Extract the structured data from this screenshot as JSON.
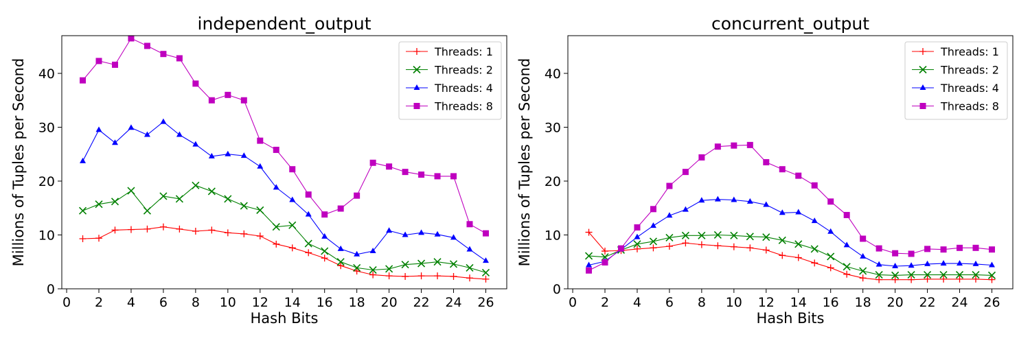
{
  "chart_data": [
    {
      "type": "line",
      "title": "independent_output",
      "xlabel": "Hash Bits",
      "ylabel": "Millions of Tuples per Second",
      "xlim": [
        -0.3,
        27.3
      ],
      "ylim": [
        0,
        47
      ],
      "xticks": [
        0,
        2,
        4,
        6,
        8,
        10,
        12,
        14,
        16,
        18,
        20,
        22,
        24,
        26
      ],
      "yticks": [
        0,
        10,
        20,
        30,
        40
      ],
      "legend_position": "top-right",
      "x": [
        1,
        2,
        3,
        4,
        5,
        6,
        7,
        8,
        9,
        10,
        11,
        12,
        13,
        14,
        15,
        16,
        17,
        18,
        19,
        20,
        21,
        22,
        23,
        24,
        25,
        26
      ],
      "series": [
        {
          "name": "Threads: 1",
          "color": "#ff0000",
          "marker": "plus",
          "values": [
            9.3,
            9.4,
            10.9,
            11.0,
            11.1,
            11.5,
            11.1,
            10.7,
            10.9,
            10.4,
            10.2,
            9.8,
            8.3,
            7.6,
            6.7,
            5.7,
            4.3,
            3.3,
            2.6,
            2.4,
            2.3,
            2.4,
            2.4,
            2.3,
            2.0,
            1.8
          ]
        },
        {
          "name": "Threads: 2",
          "color": "#008000",
          "marker": "x",
          "values": [
            14.5,
            15.7,
            16.2,
            18.2,
            14.5,
            17.2,
            16.7,
            19.2,
            18.1,
            16.7,
            15.4,
            14.6,
            11.5,
            11.8,
            8.4,
            7.0,
            5.0,
            3.9,
            3.5,
            3.7,
            4.5,
            4.7,
            5.0,
            4.6,
            3.9,
            3.0
          ]
        },
        {
          "name": "Threads: 4",
          "color": "#0000ff",
          "marker": "tri",
          "values": [
            23.7,
            29.5,
            27.1,
            29.9,
            28.6,
            31.0,
            28.6,
            26.8,
            24.6,
            25.0,
            24.7,
            22.7,
            18.8,
            16.5,
            13.8,
            9.7,
            7.4,
            6.4,
            7.0,
            10.8,
            10.0,
            10.4,
            10.1,
            9.5,
            7.3,
            5.2
          ]
        },
        {
          "name": "Threads: 8",
          "color": "#bf00bf",
          "marker": "square",
          "values": [
            38.7,
            42.3,
            41.6,
            46.5,
            45.1,
            43.6,
            42.8,
            38.1,
            35.0,
            36.0,
            35.0,
            27.5,
            25.8,
            22.2,
            17.5,
            13.8,
            14.9,
            17.3,
            23.4,
            22.7,
            21.7,
            21.2,
            20.9,
            20.9,
            12.0,
            10.3
          ]
        }
      ]
    },
    {
      "type": "line",
      "title": "concurrent_output",
      "xlabel": "Hash Bits",
      "ylabel": "Millions of Tuples per Second",
      "xlim": [
        -0.3,
        27.3
      ],
      "ylim": [
        0,
        47
      ],
      "xticks": [
        0,
        2,
        4,
        6,
        8,
        10,
        12,
        14,
        16,
        18,
        20,
        22,
        24,
        26
      ],
      "yticks": [
        0,
        10,
        20,
        30,
        40
      ],
      "legend_position": "top-right",
      "x": [
        1,
        2,
        3,
        4,
        5,
        6,
        7,
        8,
        9,
        10,
        11,
        12,
        13,
        14,
        15,
        16,
        17,
        18,
        19,
        20,
        21,
        22,
        23,
        24,
        25,
        26
      ],
      "series": [
        {
          "name": "Threads: 1",
          "color": "#ff0000",
          "marker": "plus",
          "values": [
            10.5,
            7.0,
            7.1,
            7.4,
            7.6,
            7.9,
            8.5,
            8.2,
            8.0,
            7.8,
            7.6,
            7.2,
            6.2,
            5.8,
            4.8,
            3.9,
            2.7,
            2.0,
            1.7,
            1.7,
            1.7,
            1.8,
            1.8,
            1.8,
            1.8,
            1.7
          ]
        },
        {
          "name": "Threads: 2",
          "color": "#008000",
          "marker": "x",
          "values": [
            6.1,
            5.9,
            7.2,
            8.3,
            8.8,
            9.5,
            9.9,
            9.9,
            10.0,
            9.9,
            9.7,
            9.6,
            9.0,
            8.3,
            7.4,
            6.0,
            4.1,
            3.3,
            2.6,
            2.5,
            2.6,
            2.6,
            2.6,
            2.6,
            2.6,
            2.5
          ]
        },
        {
          "name": "Threads: 4",
          "color": "#0000ff",
          "marker": "tri",
          "values": [
            4.4,
            5.1,
            7.3,
            9.6,
            11.7,
            13.6,
            14.7,
            16.4,
            16.6,
            16.5,
            16.2,
            15.6,
            14.1,
            14.2,
            12.6,
            10.6,
            8.1,
            6.0,
            4.5,
            4.2,
            4.3,
            4.6,
            4.7,
            4.7,
            4.6,
            4.4
          ]
        },
        {
          "name": "Threads: 8",
          "color": "#bf00bf",
          "marker": "square",
          "values": [
            3.4,
            4.9,
            7.5,
            11.4,
            14.8,
            19.1,
            21.7,
            24.4,
            26.4,
            26.6,
            26.7,
            23.5,
            22.2,
            21.0,
            19.2,
            16.2,
            13.7,
            9.3,
            7.5,
            6.6,
            6.5,
            7.4,
            7.3,
            7.6,
            7.6,
            7.3
          ]
        }
      ]
    }
  ]
}
